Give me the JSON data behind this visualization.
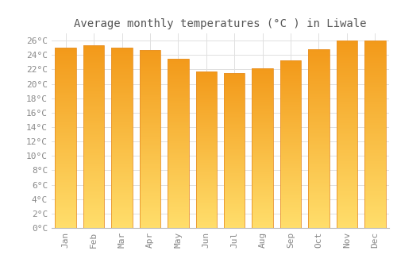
{
  "title": "Average monthly temperatures (°C ) in Liwale",
  "months": [
    "Jan",
    "Feb",
    "Mar",
    "Apr",
    "May",
    "Jun",
    "Jul",
    "Aug",
    "Sep",
    "Oct",
    "Nov",
    "Dec"
  ],
  "values": [
    25.0,
    25.3,
    25.0,
    24.7,
    23.5,
    21.7,
    21.5,
    22.1,
    23.2,
    24.8,
    26.0,
    26.0
  ],
  "bar_color_top": "#F5A623",
  "bar_color_bottom": "#FFD966",
  "bar_edge_color": "#E8922A",
  "background_color": "#ffffff",
  "grid_color": "#e0e0e0",
  "ylim": [
    0,
    27
  ],
  "ytick_step": 2,
  "title_fontsize": 10,
  "tick_fontsize": 8,
  "tick_font_family": "monospace",
  "tick_color": "#888888",
  "bar_width": 0.75,
  "n_grad": 200
}
